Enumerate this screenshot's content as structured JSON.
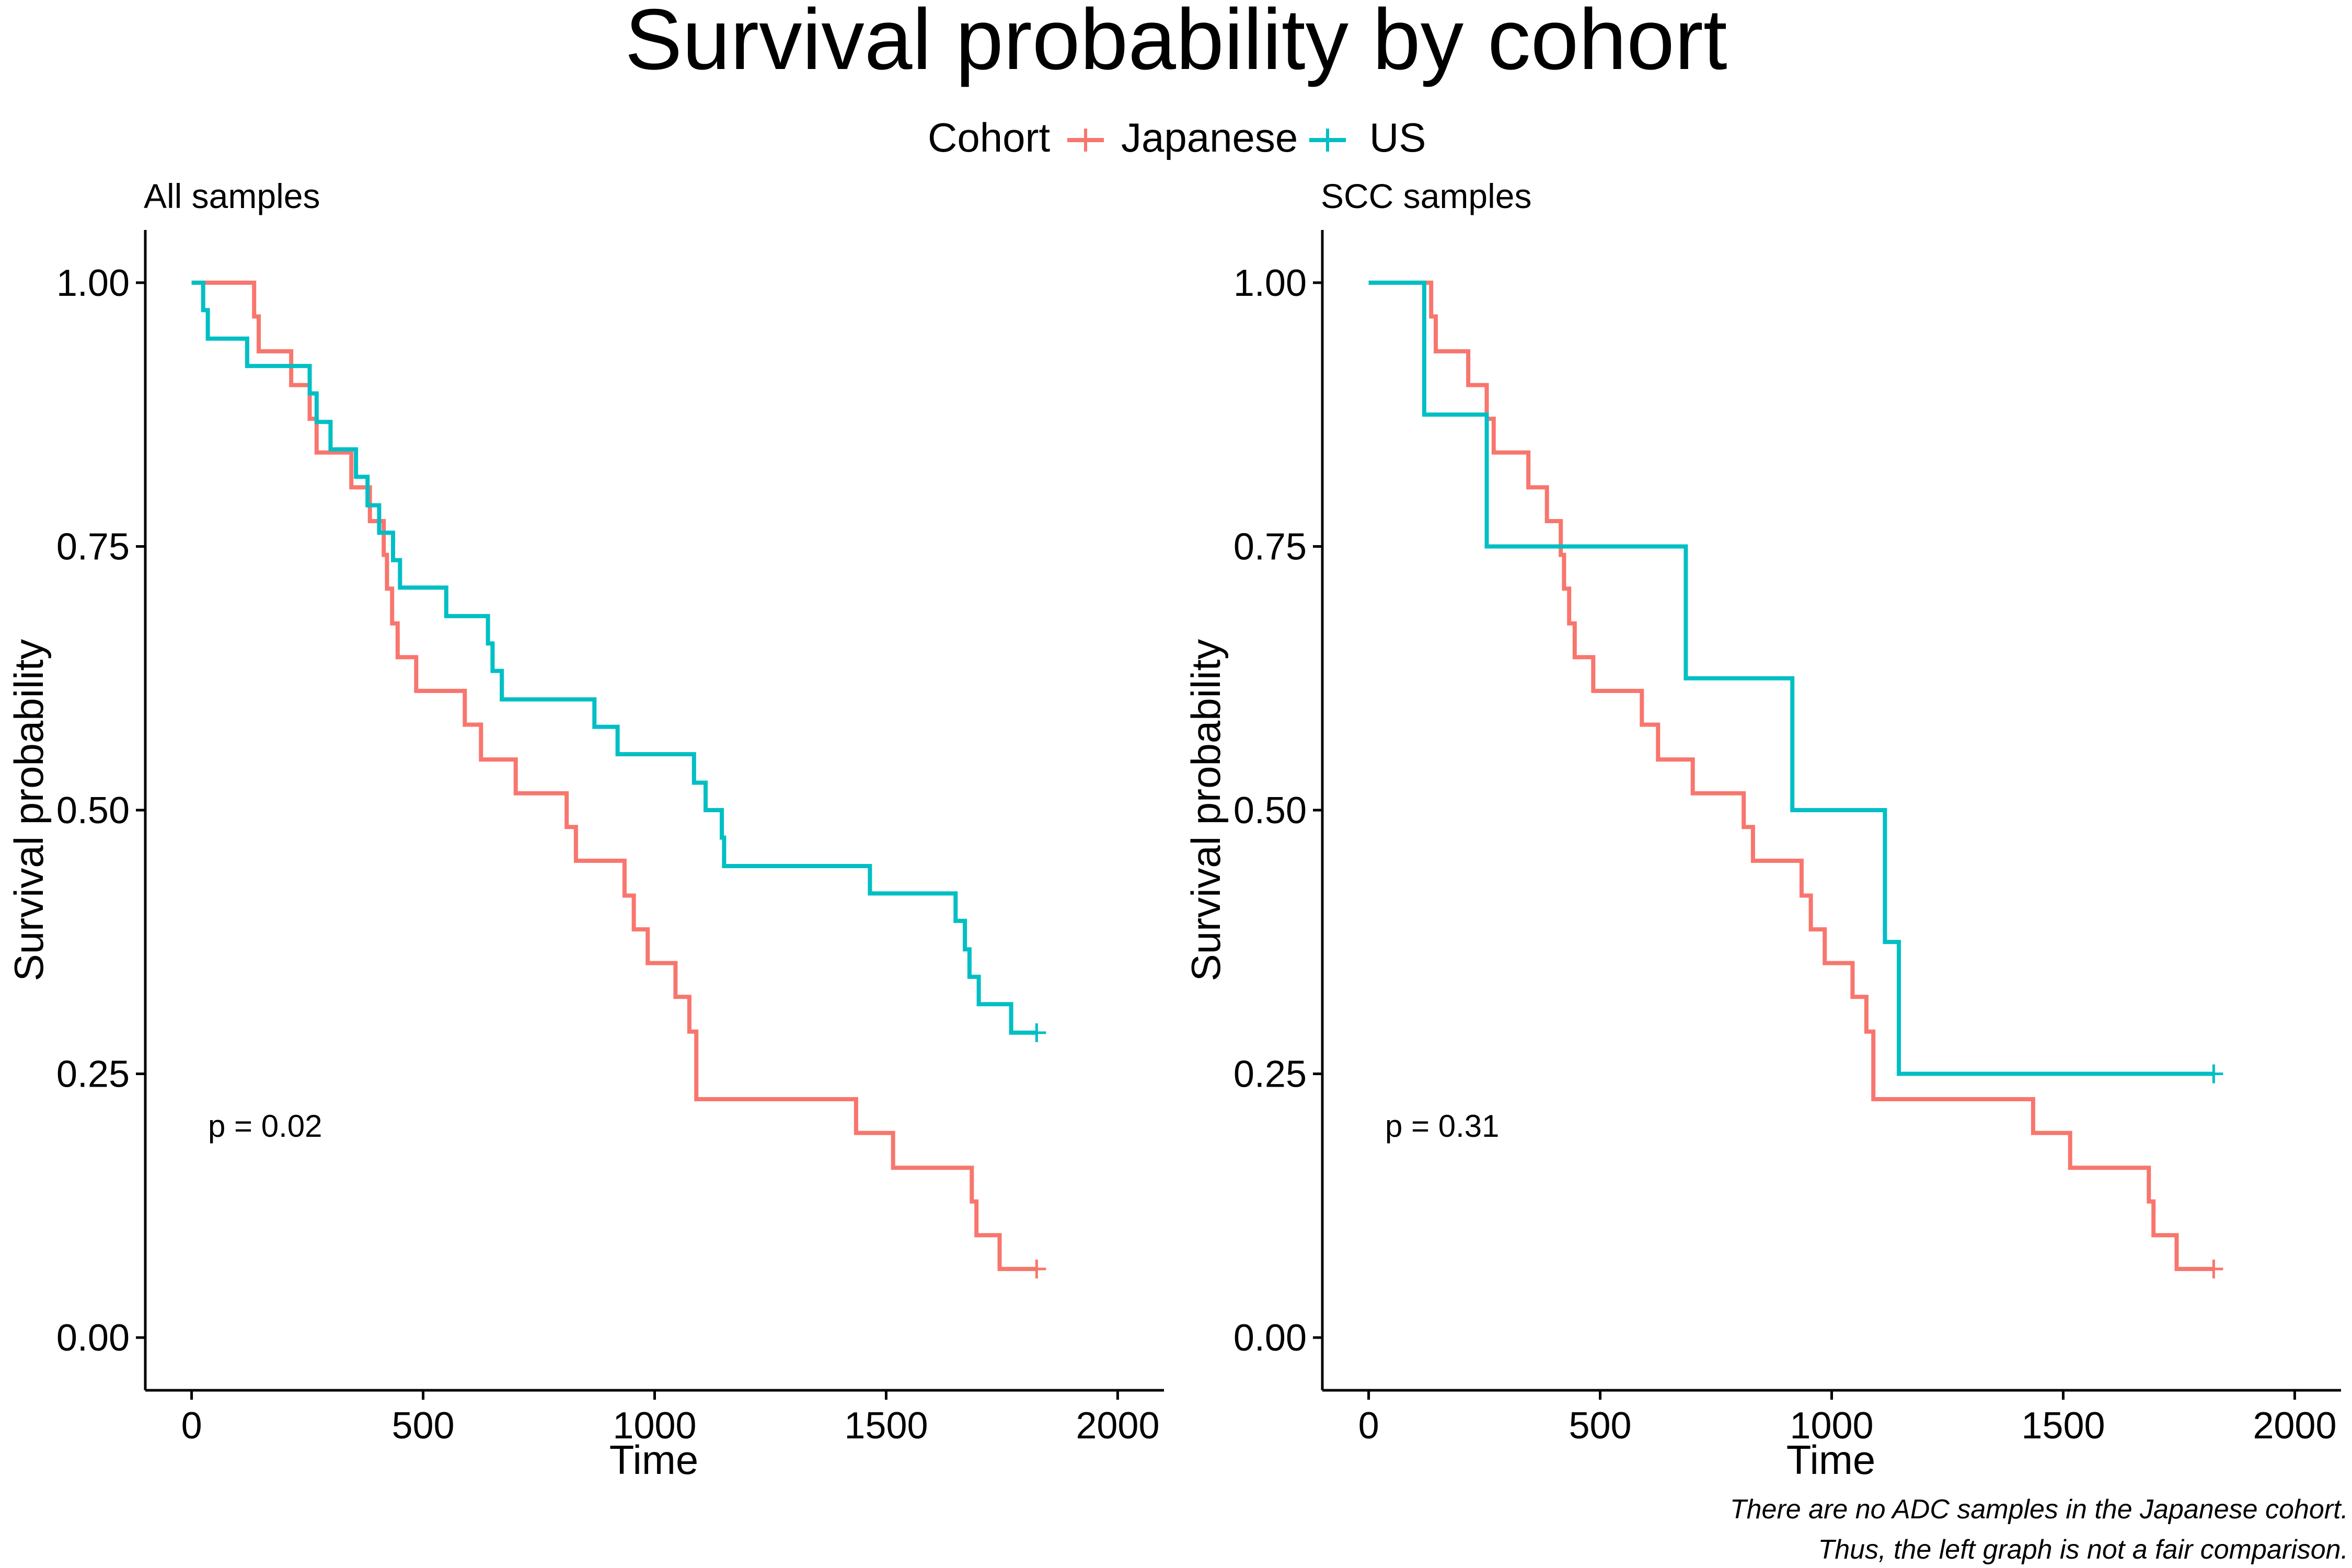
{
  "title": "Survival probability by cohort",
  "legend": {
    "title": "Cohort",
    "entries": [
      {
        "name": "Japanese",
        "color": "#F8766D"
      },
      {
        "name": "US",
        "color": "#00BFC4"
      }
    ]
  },
  "caption": [
    "There are no ADC samples in the Japanese cohort.",
    "Thus, the left graph is not a fair comparison."
  ],
  "chart_data": [
    {
      "type": "line",
      "subtitle": "All samples",
      "xlabel": "Time",
      "ylabel": "Survival probability",
      "xlim": [
        -100,
        2100
      ],
      "ylim": [
        -0.05,
        1.05
      ],
      "xticks": [
        0,
        500,
        1000,
        1500,
        2000
      ],
      "xtick_labels": [
        "0",
        "500",
        "1000",
        "1500",
        "2000"
      ],
      "yticks": [
        0,
        0.25,
        0.5,
        0.75,
        1
      ],
      "ytick_labels": [
        "0.00",
        "0.25",
        "0.50",
        "0.75",
        "1.00"
      ],
      "grid": false,
      "legend_position": "top",
      "annotation": "p = 0.02",
      "step": true,
      "series": [
        {
          "name": "Japanese",
          "color": "#F8766D",
          "x": [
            0,
            135,
            145,
            215,
            255,
            270,
            345,
            385,
            415,
            422,
            433,
            445,
            485,
            590,
            625,
            700,
            810,
            830,
            935,
            955,
            985,
            1045,
            1075,
            1090,
            1435,
            1515,
            1685,
            1695,
            1745,
            1825
          ],
          "y": [
            1.0,
            0.968,
            0.935,
            0.903,
            0.871,
            0.839,
            0.806,
            0.774,
            0.742,
            0.71,
            0.677,
            0.645,
            0.613,
            0.581,
            0.548,
            0.516,
            0.484,
            0.452,
            0.419,
            0.387,
            0.355,
            0.323,
            0.29,
            0.226,
            0.194,
            0.161,
            0.129,
            0.097,
            0.065,
            0.065
          ],
          "censored_x": [
            1825
          ],
          "censored_y": [
            0.065
          ]
        },
        {
          "name": "US",
          "color": "#00BFC4",
          "x": [
            0,
            25,
            35,
            120,
            255,
            270,
            300,
            355,
            380,
            405,
            435,
            450,
            455,
            550,
            640,
            650,
            670,
            870,
            920,
            1085,
            1110,
            1145,
            1150,
            1465,
            1650,
            1670,
            1680,
            1690,
            1700,
            1770,
            1825
          ],
          "y": [
            1.0,
            0.974,
            0.947,
            0.921,
            0.895,
            0.868,
            0.842,
            0.816,
            0.789,
            0.763,
            0.737,
            0.711,
            0.711,
            0.684,
            0.658,
            0.632,
            0.605,
            0.579,
            0.553,
            0.526,
            0.5,
            0.474,
            0.447,
            0.421,
            0.395,
            0.368,
            0.342,
            0.342,
            0.316,
            0.289,
            0.289
          ],
          "censored_x": [
            1825
          ],
          "censored_y": [
            0.289
          ]
        }
      ]
    },
    {
      "type": "line",
      "subtitle": "SCC samples",
      "xlabel": "Time",
      "ylabel": "Survival probability",
      "xlim": [
        -100,
        2100
      ],
      "ylim": [
        -0.05,
        1.05
      ],
      "xticks": [
        0,
        500,
        1000,
        1500,
        2000
      ],
      "xtick_labels": [
        "0",
        "500",
        "1000",
        "1500",
        "2000"
      ],
      "yticks": [
        0,
        0.25,
        0.5,
        0.75,
        1
      ],
      "ytick_labels": [
        "0.00",
        "0.25",
        "0.50",
        "0.75",
        "1.00"
      ],
      "grid": false,
      "legend_position": "top",
      "annotation": "p = 0.31",
      "step": true,
      "series": [
        {
          "name": "Japanese",
          "color": "#F8766D",
          "x": [
            0,
            135,
            145,
            215,
            255,
            270,
            345,
            385,
            415,
            422,
            433,
            445,
            485,
            590,
            625,
            700,
            810,
            830,
            935,
            955,
            985,
            1045,
            1075,
            1090,
            1435,
            1515,
            1685,
            1695,
            1745,
            1825
          ],
          "y": [
            1.0,
            0.968,
            0.935,
            0.903,
            0.871,
            0.839,
            0.806,
            0.774,
            0.742,
            0.71,
            0.677,
            0.645,
            0.613,
            0.581,
            0.548,
            0.516,
            0.484,
            0.452,
            0.419,
            0.387,
            0.355,
            0.323,
            0.29,
            0.226,
            0.194,
            0.161,
            0.129,
            0.097,
            0.065,
            0.065
          ],
          "censored_x": [
            1825
          ],
          "censored_y": [
            0.065
          ]
        },
        {
          "name": "US",
          "color": "#00BFC4",
          "x": [
            0,
            120,
            255,
            685,
            915,
            1115,
            1145,
            1825
          ],
          "y": [
            1.0,
            0.875,
            0.75,
            0.625,
            0.5,
            0.375,
            0.25,
            0.25
          ],
          "censored_x": [
            1825
          ],
          "censored_y": [
            0.25
          ]
        }
      ]
    }
  ]
}
